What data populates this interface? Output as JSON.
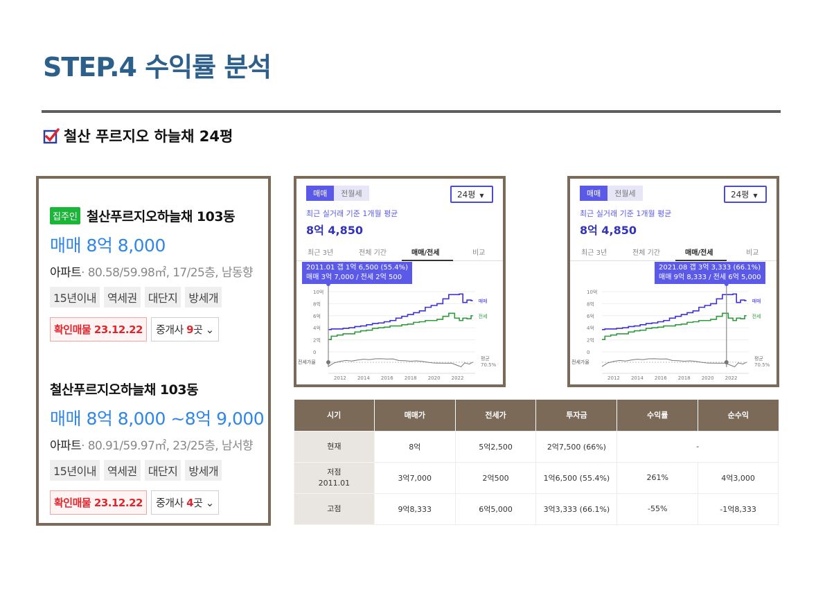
{
  "page": {
    "title": "STEP.4 수익률 분석",
    "subtitle": "철산 푸르지오 하늘채 24평"
  },
  "listings": [
    {
      "badge": "집주인",
      "name": "철산푸르지오하늘채 103동",
      "price": "매매 8억 8,000",
      "type": "아파트",
      "info": "· 80.58/59.98㎡, 17/25층, 남동향",
      "tags": [
        "15년이내",
        "역세권",
        "대단지",
        "방세개"
      ],
      "verified": "확인매물 23.12.22",
      "agents_prefix": "중개사 ",
      "agents_count": "9",
      "agents_suffix": "곳"
    },
    {
      "badge": "",
      "name": "철산푸르지오하늘채 103동",
      "price": "매매 8억 8,000 ~8억 9,000",
      "type": "아파트",
      "info": "· 80.91/59.97㎡, 23/25층, 남서향",
      "tags": [
        "15년이내",
        "역세권",
        "대단지",
        "방세개"
      ],
      "verified": "확인매물 23.12.22",
      "agents_prefix": "중개사 ",
      "agents_count": "4",
      "agents_suffix": "곳"
    }
  ],
  "charts": [
    {
      "seg_on": "매매",
      "seg_off": "전월세",
      "pyeong": "24평",
      "caption": "최근 실거래 기준 1개월 평균",
      "value": "8억 4,850",
      "tabs": [
        "최근 3년",
        "전체 기간",
        "매매/전세",
        "비교"
      ],
      "selected_tab": 2,
      "tooltip_line1": "2011.01  갭 1억 6,500 (55.4%)",
      "tooltip_line2": "매매 3억 7,000 / 전세 2억 500",
      "marker_year": 2011.0
    },
    {
      "seg_on": "매매",
      "seg_off": "전월세",
      "pyeong": "24평",
      "caption": "최근 실거래 기준 1개월 평균",
      "value": "8억 4,850",
      "tabs": [
        "최근 3년",
        "전체 기간",
        "매매/전세",
        "비교"
      ],
      "selected_tab": 2,
      "tooltip_line1": "2021.08  갭 3억 3,333 (66.1%)",
      "tooltip_line2": "매매 9억 8,333 / 전세 6억 5,000",
      "marker_year": 2021.6
    }
  ],
  "chart_data": {
    "type": "line",
    "title": "",
    "x_ticks": [
      "2012",
      "2014",
      "2016",
      "2018",
      "2020",
      "2022"
    ],
    "y_ticks": [
      "10억",
      "8억",
      "6억",
      "4억",
      "2억",
      "0"
    ],
    "ratio_label": "전세가율",
    "ratio_avg_label": "평균",
    "ratio_avg_value": "70.5%",
    "ylim": [
      0,
      10
    ],
    "xlim": [
      2011,
      2023.5
    ],
    "series": [
      {
        "name": "매매",
        "color": "#3b2fd6",
        "x": [
          2011.0,
          2011.5,
          2012.0,
          2012.5,
          2013.0,
          2013.5,
          2014.0,
          2014.5,
          2015.0,
          2015.5,
          2016.0,
          2016.5,
          2017.0,
          2017.5,
          2018.0,
          2018.5,
          2019.0,
          2019.5,
          2020.0,
          2020.5,
          2021.0,
          2021.5,
          2022.0,
          2022.3,
          2022.6,
          2023.0,
          2023.3
        ],
        "values": [
          3.7,
          3.8,
          3.8,
          3.9,
          4.0,
          4.2,
          4.3,
          4.5,
          4.7,
          4.8,
          5.0,
          5.2,
          5.6,
          5.9,
          6.2,
          6.5,
          6.8,
          7.4,
          7.7,
          8.0,
          8.8,
          9.5,
          9.5,
          9.6,
          8.2,
          8.6,
          8.5
        ]
      },
      {
        "name": "전세",
        "color": "#2f9a3a",
        "x": [
          2011.0,
          2011.5,
          2012.0,
          2012.5,
          2013.0,
          2013.5,
          2014.0,
          2014.5,
          2015.0,
          2015.5,
          2016.0,
          2016.5,
          2017.0,
          2017.5,
          2018.0,
          2018.5,
          2019.0,
          2019.5,
          2020.0,
          2020.5,
          2021.0,
          2021.5,
          2022.0,
          2022.3,
          2022.6,
          2023.0,
          2023.3
        ],
        "values": [
          2.05,
          2.6,
          2.8,
          3.0,
          3.0,
          3.3,
          3.5,
          3.6,
          3.9,
          4.0,
          4.1,
          4.3,
          4.3,
          4.5,
          4.6,
          4.9,
          5.0,
          5.2,
          5.2,
          5.4,
          5.9,
          6.4,
          5.6,
          5.2,
          5.6,
          5.5,
          6.0
        ]
      }
    ]
  },
  "table": {
    "headers": [
      "시기",
      "매매가",
      "전세가",
      "투자금",
      "수익률",
      "순수익"
    ],
    "rows": [
      {
        "period": "현재",
        "period2": "",
        "sale": "8억",
        "jeonse": "5억2,500",
        "invest": "2억7,500 (66%)",
        "rate": "",
        "profit": "-"
      },
      {
        "period": "저점",
        "period2": "2011.01",
        "sale": "3억7,000",
        "jeonse": "2억500",
        "invest": "1억6,500 (55.4%)",
        "rate": "261%",
        "profit": "4억3,000"
      },
      {
        "period": "고점",
        "period2": "",
        "sale": "9억8,333",
        "jeonse": "6억5,000",
        "invest": "3억3,333 (66.1%)",
        "rate": "-55%",
        "profit": "-1억8,333"
      }
    ]
  }
}
